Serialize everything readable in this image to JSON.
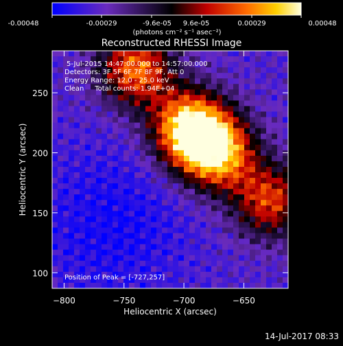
{
  "colorbar": {
    "ticks": [
      "-0.00048",
      "-0.00029",
      "-9.6e-05",
      "9.6e-05",
      "0.00029",
      "0.00048"
    ],
    "unit_label": "(photons cm⁻² s⁻¹ asec⁻²)",
    "colors": [
      "#0000ff",
      "#6a2bbd",
      "#000000",
      "#c00000",
      "#ff6a00",
      "#ffd000",
      "#ffffe0"
    ]
  },
  "info": {
    "time_range": "5-Jul-2015 14:47:00.000 to 14:57:00.000",
    "detectors": "Detectors: 3F 5F 6F 7F 8F 9F, Att 0",
    "energy_range": "Energy Range: 12.0 - 25.0 keV",
    "clean_counts": "Clean     Total counts: 1.94E+04",
    "peak": "Position of Peak = [-727,257]"
  },
  "footer": {
    "timestamp": "14-Jul-2017 08:33"
  },
  "chart_data": {
    "type": "heatmap",
    "title": "Reconstructed RHESSI Image",
    "xlabel": "Heliocentric X (arcsec)",
    "ylabel": "Heliocentric Y (arcsec)",
    "xlim": [
      -810,
      -613
    ],
    "ylim": [
      87,
      285
    ],
    "xticks": [
      -800,
      -750,
      -700,
      -650
    ],
    "yticks": [
      100,
      150,
      200,
      250
    ],
    "value_range": [
      -0.00048,
      0.00048
    ],
    "peak_position": [
      -727,
      257
    ],
    "bright_regions": [
      {
        "x": -695,
        "y": 220,
        "level": 0.95
      },
      {
        "x": -672,
        "y": 200,
        "level": 0.8
      },
      {
        "x": -740,
        "y": 270,
        "level": 0.7
      },
      {
        "x": -628,
        "y": 160,
        "level": 0.6
      }
    ]
  }
}
